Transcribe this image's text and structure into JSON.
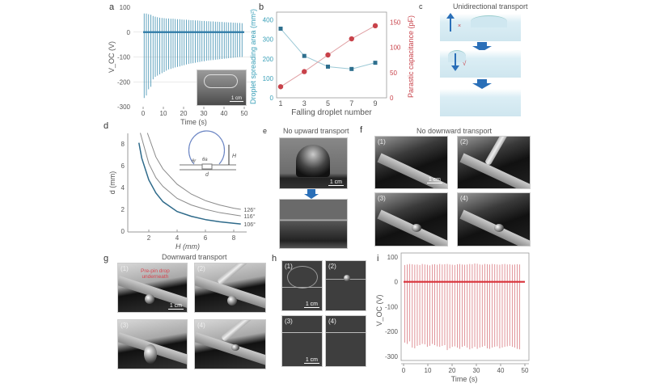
{
  "panel_labels": {
    "a": "a",
    "b": "b",
    "c": "c",
    "d": "d",
    "e": "e",
    "f": "f",
    "g": "g",
    "h": "h",
    "i": "i"
  },
  "panel_c": {
    "title": "Unidirectional transport",
    "cross": "×",
    "check": "√"
  },
  "panel_e": {
    "title": "No upward transport",
    "scale": "1 cm"
  },
  "panel_f": {
    "title": "No downward transport",
    "frames": [
      "(1)",
      "(2)",
      "(3)",
      "(4)"
    ],
    "scale": "1 cm"
  },
  "panel_g": {
    "title": "Downward transport",
    "frames": [
      "(1)",
      "(2)",
      "(3)",
      "(4)"
    ],
    "annotation_line1": "Pre-pin drop",
    "annotation_line2": "underneath",
    "scale": "1 cm"
  },
  "panel_h": {
    "frames": [
      "(1)",
      "(2)",
      "(3)",
      "(4)"
    ],
    "scale": "1 cm"
  },
  "panel_a_inset": {
    "scale": "1 cm"
  },
  "colors": {
    "blue": "#3d8fb0",
    "red": "#c8424a",
    "teal": "#3aa0b8",
    "grid": "#d6d6d6",
    "dark_blue": "#2e6a8a",
    "gray_curve": "#8a8a8a"
  },
  "chart_data": [
    {
      "id": "a",
      "type": "line",
      "title": "",
      "xlabel": "Time (s)",
      "ylabel": "V_OC (V)",
      "xlim": [
        -5,
        55
      ],
      "ylim": [
        -300,
        100
      ],
      "xticks": [
        0,
        10,
        20,
        30,
        40,
        50
      ],
      "yticks": [
        100,
        0,
        -100,
        -200,
        -300
      ],
      "grid": true,
      "spike_start": 0.5,
      "spike_interval": 1.1,
      "positive_peaks": [
        75,
        75,
        72,
        70,
        65,
        62,
        60,
        58,
        57,
        56,
        55,
        55,
        54,
        54,
        53,
        52,
        52,
        51,
        50,
        50,
        49,
        48,
        48,
        47,
        47,
        46,
        45,
        45,
        44,
        44,
        43,
        43,
        42,
        42,
        41,
        41,
        40,
        40,
        39,
        39,
        38,
        38,
        37,
        37,
        36
      ],
      "negative_peaks": [
        -265,
        -255,
        -230,
        -220,
        -190,
        -180,
        -175,
        -170,
        -165,
        -160,
        -155,
        -150,
        -148,
        -145,
        -142,
        -140,
        -138,
        -135,
        -133,
        -130,
        -128,
        -126,
        -125,
        -123,
        -121,
        -120,
        -118,
        -117,
        -115,
        -114,
        -113,
        -112,
        -111,
        -110,
        -109,
        -108,
        -107,
        -106,
        -105,
        -104,
        -103,
        -102,
        -101,
        -100,
        -100
      ]
    },
    {
      "id": "b",
      "type": "line",
      "xlabel": "Falling droplet number",
      "ylabel_left": "Droplet spreading area (mm²)",
      "ylabel_right": "Parastic capacitance (pF)",
      "categories": [
        1,
        3,
        5,
        7,
        9
      ],
      "xlim": [
        0.5,
        9.8
      ],
      "ylim_left": [
        0,
        440
      ],
      "ylim_right": [
        0,
        170
      ],
      "yticks_left": [
        0,
        100,
        200,
        300,
        400
      ],
      "yticks_right": [
        0,
        50,
        100,
        150
      ],
      "series": [
        {
          "name": "Droplet spreading area",
          "axis": "left",
          "values": [
            355,
            215,
            160,
            148,
            180
          ]
        },
        {
          "name": "Parastic capacitance",
          "axis": "right",
          "values": [
            22,
            52,
            85,
            117,
            143
          ]
        }
      ]
    },
    {
      "id": "d",
      "type": "line",
      "xlabel": "H (mm)",
      "ylabel": "d (mm)",
      "xlim": [
        0.6,
        9
      ],
      "ylim": [
        0,
        9
      ],
      "xticks": [
        2,
        4,
        6,
        8
      ],
      "yticks": [
        0,
        2,
        4,
        6,
        8
      ],
      "inset_labels": {
        "H": "H",
        "theta_r": "θr",
        "theta_a": "θa",
        "d": "d"
      },
      "series": [
        {
          "name": "126°",
          "H": [
            1.9,
            2.5,
            3,
            4,
            5,
            6,
            7,
            8,
            8.5
          ],
          "d": [
            9,
            6.8,
            5.7,
            4.3,
            3.4,
            2.8,
            2.4,
            2.1,
            2.0
          ]
        },
        {
          "name": "116°",
          "H": [
            1.4,
            2,
            2.5,
            3,
            4,
            5,
            6,
            7,
            8,
            8.5
          ],
          "d": [
            9,
            6.2,
            4.9,
            4.1,
            3.0,
            2.4,
            2.0,
            1.7,
            1.5,
            1.4
          ]
        },
        {
          "name": "106°",
          "H": [
            1.3,
            1.5,
            2,
            2.5,
            3,
            4,
            5,
            6,
            7,
            8,
            8.5
          ],
          "d": [
            8.1,
            6.7,
            4.7,
            3.5,
            2.7,
            1.8,
            1.36,
            1.06,
            0.86,
            0.72,
            0.66
          ]
        }
      ]
    },
    {
      "id": "i",
      "type": "line",
      "xlabel": "Time (s)",
      "ylabel": "V_OC (V)",
      "xlim": [
        -0.5,
        51
      ],
      "ylim": [
        -330,
        100
      ],
      "xticks": [
        0,
        10,
        20,
        30,
        40,
        50
      ],
      "yticks": [
        100,
        0,
        -100,
        -200,
        -300
      ],
      "spike_start": 0.5,
      "spike_interval": 1.03,
      "positive_peaks": [
        68,
        70,
        72,
        71,
        69,
        70,
        68,
        72,
        70,
        69,
        66,
        70,
        71,
        69,
        72,
        70,
        71,
        72,
        70,
        69,
        68,
        71,
        72,
        70,
        69,
        70,
        72,
        71,
        74,
        73,
        70,
        69,
        72,
        71,
        70,
        72,
        71,
        70,
        69,
        71,
        72,
        70,
        71,
        69,
        70,
        71,
        70
      ],
      "negative_peaks": [
        -245,
        -250,
        -240,
        -265,
        -268,
        -258,
        -255,
        -250,
        -252,
        -262,
        -258,
        -250,
        -255,
        -260,
        -262,
        -258,
        -255,
        -275,
        -268,
        -262,
        -260,
        -265,
        -270,
        -262,
        -258,
        -265,
        -272,
        -268,
        -262,
        -270,
        -265,
        -262,
        -258,
        -268,
        -270,
        -265,
        -262,
        -260,
        -268,
        -265,
        -262,
        -260,
        -258,
        -262,
        -265,
        -270,
        -272
      ]
    }
  ]
}
